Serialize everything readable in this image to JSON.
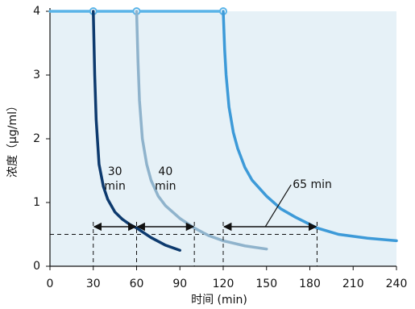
{
  "chart_data": {
    "type": "line",
    "x_label": "时间 (min)",
    "y_label": "浓度（μg/ml）",
    "xlim": [
      0,
      240
    ],
    "xticks": [
      0,
      30,
      60,
      90,
      120,
      150,
      180,
      210,
      240
    ],
    "ylim": [
      0,
      4
    ],
    "yticks": [
      0,
      1,
      2,
      3,
      4
    ],
    "threshold": 0.5,
    "series": [
      {
        "color": "#5ab4e8",
        "markers": true,
        "x": [
          0,
          30,
          60,
          120
        ],
        "values": [
          4,
          4,
          4,
          4
        ]
      },
      {
        "color": "#0d3a6e",
        "x": [
          30,
          31,
          32,
          34,
          37,
          40,
          45,
          50,
          55,
          60,
          70,
          80,
          90
        ],
        "values": [
          4,
          3.0,
          2.3,
          1.6,
          1.25,
          1.05,
          0.85,
          0.74,
          0.66,
          0.6,
          0.45,
          0.33,
          0.25
        ]
      },
      {
        "color": "#8fb3cc",
        "x": [
          60,
          61,
          62,
          64,
          67,
          70,
          75,
          80,
          90,
          100,
          110,
          120,
          135,
          150
        ],
        "values": [
          4,
          3.2,
          2.6,
          2.0,
          1.6,
          1.35,
          1.1,
          0.95,
          0.75,
          0.6,
          0.48,
          0.4,
          0.32,
          0.27
        ]
      },
      {
        "color": "#3d9ad8",
        "x": [
          120,
          121,
          122,
          124,
          127,
          130,
          135,
          140,
          150,
          160,
          170,
          185,
          200,
          220,
          240
        ],
        "values": [
          4,
          3.4,
          3.0,
          2.5,
          2.1,
          1.85,
          1.55,
          1.35,
          1.1,
          0.9,
          0.77,
          0.6,
          0.5,
          0.44,
          0.4
        ]
      }
    ],
    "annotations": [
      {
        "lines": [
          "30",
          "min"
        ],
        "start": 30,
        "end": 60,
        "level": 0.62
      },
      {
        "lines": [
          "40",
          "min"
        ],
        "start": 60,
        "end": 100,
        "level": 0.62
      },
      {
        "lines": [
          "65 min"
        ],
        "start": 120,
        "end": 185,
        "level": 0.62,
        "leader": true
      }
    ]
  }
}
